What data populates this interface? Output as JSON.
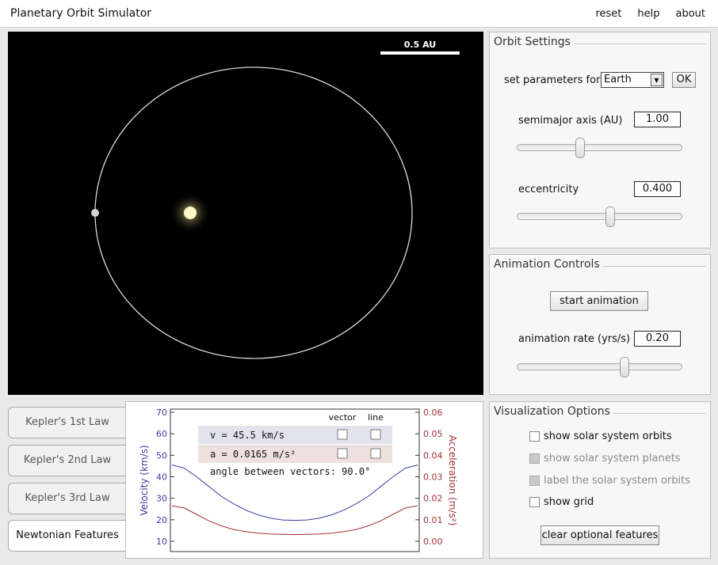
{
  "app": {
    "title": "Planetary Orbit Simulator",
    "menu": [
      "reset",
      "help",
      "about"
    ]
  },
  "viewport": {
    "scale_label": "0.5 AU"
  },
  "orbit_settings": {
    "title": "Orbit Settings",
    "set_params_label": "set parameters for:",
    "planet_selected": "Earth",
    "ok_label": "OK",
    "semimajor_label": "semimajor axis (AU)",
    "semimajor_value": "1.00",
    "semimajor_slider_fraction": 0.38,
    "eccentricity_label": "eccentricity",
    "eccentricity_value": "0.400",
    "eccentricity_slider_fraction": 0.57
  },
  "animation": {
    "title": "Animation Controls",
    "start_label": "start animation",
    "rate_label": "animation rate (yrs/s)",
    "rate_value": "0.20",
    "rate_slider_fraction": 0.67
  },
  "visualization": {
    "title": "Visualization Options",
    "options": [
      {
        "label": "show solar system orbits",
        "enabled": true
      },
      {
        "label": "show solar system planets",
        "enabled": false
      },
      {
        "label": "label the solar system orbits",
        "enabled": false
      },
      {
        "label": "show grid",
        "enabled": true
      }
    ],
    "clear_label": "clear optional features"
  },
  "tabs": [
    {
      "label": "Kepler's 1st Law",
      "active": false
    },
    {
      "label": "Kepler's 2nd Law",
      "active": false
    },
    {
      "label": "Kepler's 3rd Law",
      "active": false
    },
    {
      "label": "Newtonian Features",
      "active": true
    }
  ],
  "newtonian": {
    "vector_header": "vector",
    "line_header": "line",
    "velocity_text": "v = 45.5 km/s",
    "acceleration_text": "a = 0.0165 m/s²",
    "angle_text": "angle between vectors: 90.0°",
    "colors": {
      "velocity": "#3a3aa0",
      "acceleration": "#a03030"
    }
  },
  "chart_data": {
    "type": "line",
    "ylabel": "Velocity (km/s)",
    "y2label": "Acceleration (m/s²)",
    "ylim": [
      10,
      70
    ],
    "y2lim": [
      0,
      0.06
    ],
    "yticks": [
      "70",
      "60",
      "50",
      "40",
      "30",
      "20",
      "10"
    ],
    "y2ticks": [
      "0.06",
      "0.05",
      "0.04",
      "0.03",
      "0.02",
      "0.01",
      "0.00"
    ],
    "x": [
      0,
      0.05,
      0.1,
      0.15,
      0.2,
      0.25,
      0.3,
      0.35,
      0.4,
      0.45,
      0.5,
      0.55,
      0.6,
      0.65,
      0.7,
      0.75,
      0.8,
      0.85,
      0.9,
      0.95,
      1
    ],
    "series": [
      {
        "values": [
          45.5,
          44,
          40,
          35.5,
          31,
          27.5,
          24.5,
          22.3,
          20.8,
          19.9,
          19.7,
          19.9,
          20.8,
          22.3,
          24.5,
          27.5,
          31,
          35.5,
          40,
          44,
          45.5
        ]
      },
      {
        "values": [
          0.0165,
          0.0155,
          0.0125,
          0.0095,
          0.0072,
          0.0055,
          0.0045,
          0.0038,
          0.0034,
          0.0032,
          0.0031,
          0.0032,
          0.0034,
          0.0038,
          0.0045,
          0.0055,
          0.0072,
          0.0095,
          0.0125,
          0.0155,
          0.0165
        ]
      }
    ]
  }
}
